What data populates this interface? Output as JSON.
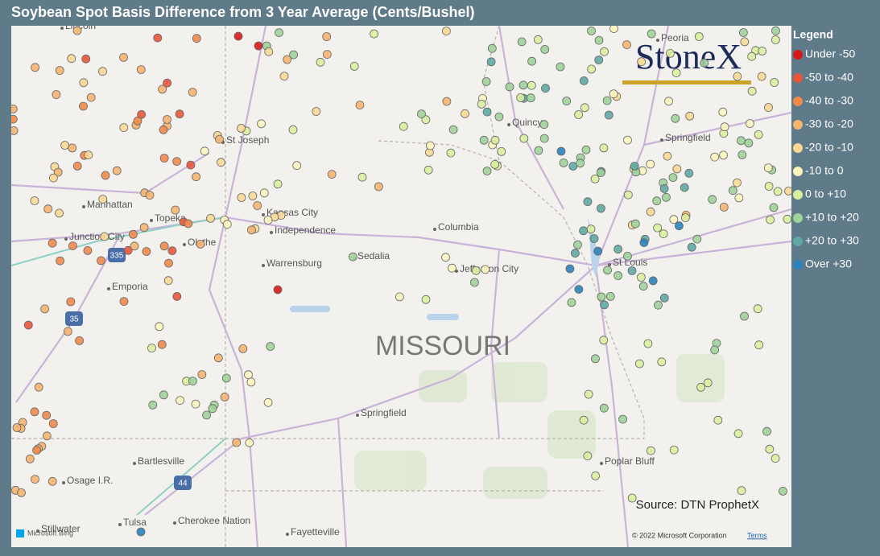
{
  "header": {
    "title": "Soybean Spot Basis Difference from 3 Year Average (Cents/Bushel)"
  },
  "legend": {
    "title": "Legend",
    "items": [
      {
        "label": "Under -50",
        "color": "#d7191c"
      },
      {
        "label": "-50 to -40",
        "color": "#e8553a"
      },
      {
        "label": "-40 to -30",
        "color": "#f08a4b"
      },
      {
        "label": "-30 to -20",
        "color": "#f5b46f"
      },
      {
        "label": "-20 to -10",
        "color": "#fad894"
      },
      {
        "label": "-10 to 0",
        "color": "#fbf5bd"
      },
      {
        "label": "0 to +10",
        "color": "#d9ef9f"
      },
      {
        "label": "+10 to +20",
        "color": "#9fd39a"
      },
      {
        "label": "+20 to +30",
        "color": "#5fa8a4"
      },
      {
        "label": "Over +30",
        "color": "#2b83ba"
      }
    ]
  },
  "map": {
    "region_label": "MISSOURI",
    "logo": "StoneX",
    "places": [
      "Lincoln",
      "St Joseph",
      "Peoria",
      "Springfield",
      "Quincy",
      "Manhattan",
      "Topeka",
      "Kansas City",
      "Independence",
      "Junction City",
      "Olathe",
      "Columbia",
      "Sedalia",
      "Warrensburg",
      "Jefferson City",
      "St Louis",
      "Emporia",
      "Springfield",
      "Bartlesville",
      "Osage I.R.",
      "Poplar Bluff",
      "Tulsa",
      "Cherokee Nation",
      "Stillwater",
      "Fayetteville"
    ],
    "highways": [
      "335",
      "35",
      "44"
    ]
  },
  "source": "Source: DTN ProphetX",
  "attribution": {
    "bing": "Microsoft Bing",
    "copyright": "© 2022 Microsoft Corporation",
    "terms": "Terms"
  }
}
